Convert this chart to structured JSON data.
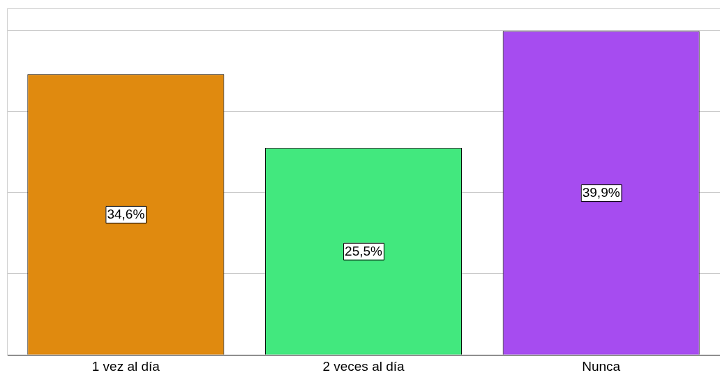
{
  "chart_data": {
    "type": "bar",
    "categories": [
      "1 vez al día",
      "2 veces al día",
      "Nunca"
    ],
    "values": [
      34.6,
      25.5,
      39.9
    ],
    "colors": [
      "#e08a0f",
      "#42e87e",
      "#a64cf0"
    ],
    "value_labels": [
      "34,6%",
      "25,5%",
      "39,9%"
    ],
    "ylim": [
      0,
      42.7
    ],
    "yticks": [
      {
        "value": 0,
        "label": null
      },
      {
        "value": 10,
        "label": null
      },
      {
        "value": 20,
        "label": null
      },
      {
        "value": 30,
        "label": null
      },
      {
        "value": 40,
        "label": null
      }
    ],
    "grid": "y",
    "tick_labels": "x",
    "legend": false
  }
}
